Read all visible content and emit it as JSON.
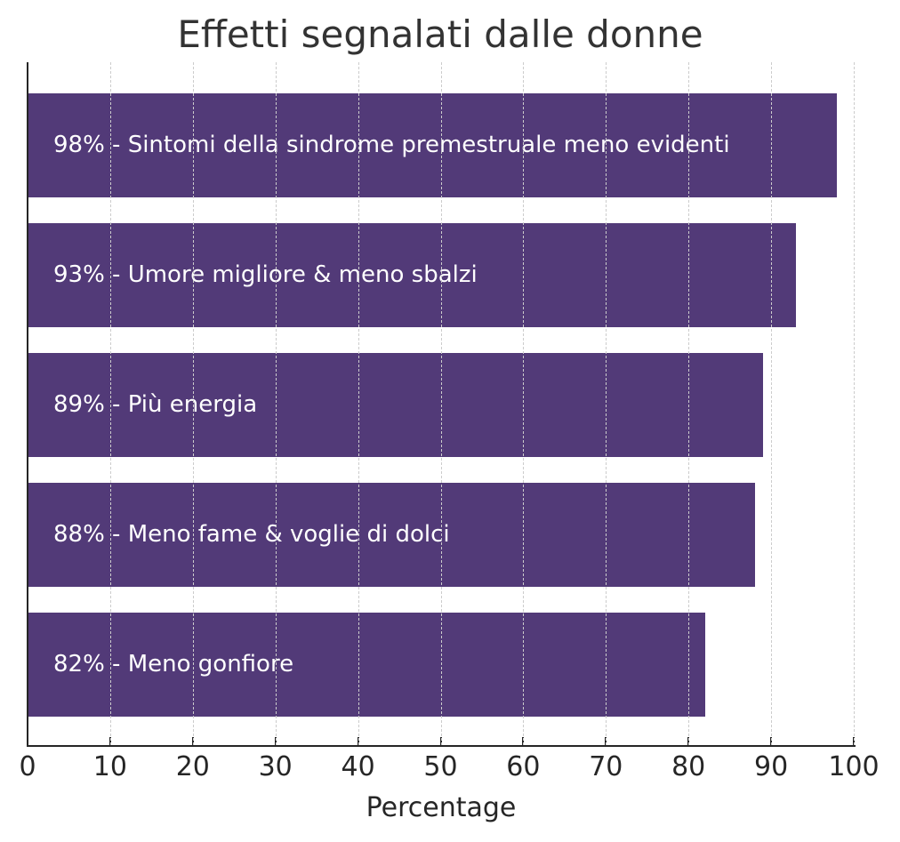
{
  "chart_data": {
    "type": "bar",
    "orientation": "horizontal",
    "title": "Effetti segnalati dalle donne",
    "xlabel": "Percentage",
    "ylabel": "",
    "xlim": [
      0,
      100
    ],
    "xticks": [
      "0",
      "10",
      "20",
      "30",
      "40",
      "50",
      "60",
      "70",
      "80",
      "90",
      "100"
    ],
    "grid": {
      "x": true,
      "y": false,
      "style": "dashed"
    },
    "bar_color": "#523A78",
    "categories": [
      "Sintomi della sindrome premestruale meno evidenti",
      "Umore migliore & meno sbalzi",
      "Più energia",
      "Meno fame & voglie di dolci",
      "Meno gonfiore"
    ],
    "values": [
      98,
      93,
      89,
      88,
      82
    ],
    "bar_labels": [
      "98% - Sintomi della sindrome premestruale meno evidenti",
      "93% - Umore migliore & meno sbalzi",
      "89% - Più energia",
      "88% - Meno fame & voglie di dolci",
      "82% - Meno gonfiore"
    ]
  }
}
